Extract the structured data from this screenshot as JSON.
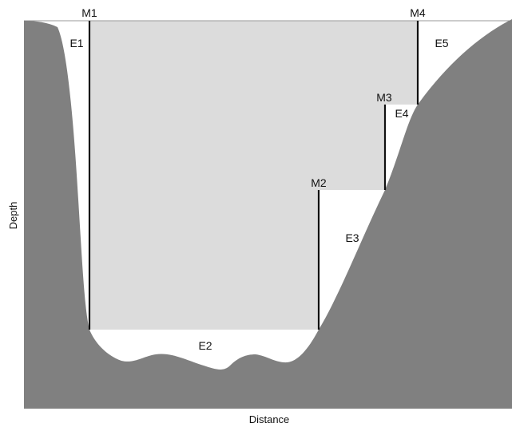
{
  "axes": {
    "x_label": "Distance",
    "y_label": "Depth"
  },
  "measurements": [
    {
      "id": "m1",
      "label": "M1"
    },
    {
      "id": "m2",
      "label": "M2"
    },
    {
      "id": "m3",
      "label": "M3"
    },
    {
      "id": "m4",
      "label": "M4"
    }
  ],
  "regions": [
    {
      "id": "e1",
      "label": "E1"
    },
    {
      "id": "e2",
      "label": "E2"
    },
    {
      "id": "e3",
      "label": "E3"
    },
    {
      "id": "e4",
      "label": "E4"
    },
    {
      "id": "e5",
      "label": "E5"
    }
  ],
  "colors": {
    "terrain": "#808080",
    "measured_area": "#dcdcdc",
    "water_unmeasured": "#ffffff",
    "line": "#111111"
  }
}
